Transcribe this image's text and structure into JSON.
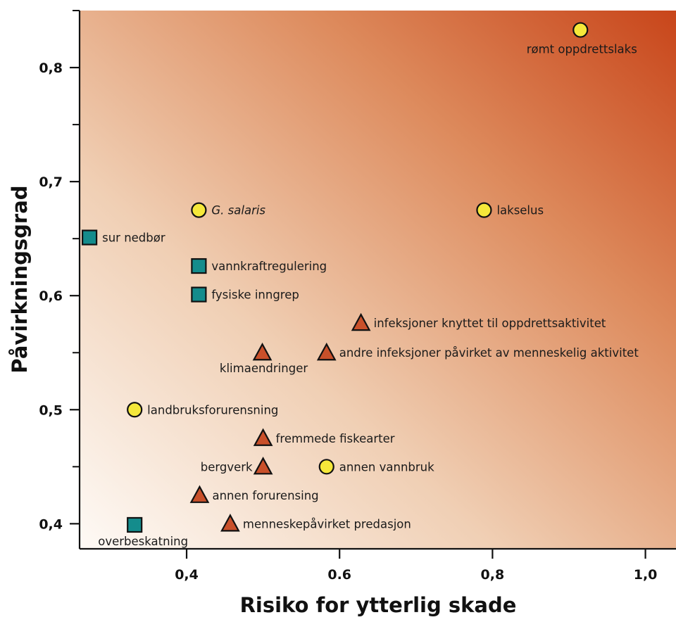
{
  "chart_data": {
    "type": "scatter",
    "title": "",
    "xlabel": "Risiko for ytterlig skade",
    "ylabel": "Påvirkningsgrad",
    "xlim": [
      0.26,
      1.04
    ],
    "ylim": [
      0.378,
      0.85
    ],
    "x_ticks": [
      {
        "value": 0.4,
        "label": "0,4"
      },
      {
        "value": 0.6,
        "label": "0.6"
      },
      {
        "value": 0.8,
        "label": "0,8"
      },
      {
        "value": 1.0,
        "label": "1,0"
      }
    ],
    "y_ticks": [
      {
        "value": 0.4,
        "label": "0,4"
      },
      {
        "value": 0.5,
        "label": "0,5"
      },
      {
        "value": 0.6,
        "label": "0,6"
      },
      {
        "value": 0.7,
        "label": "0,7"
      },
      {
        "value": 0.8,
        "label": "0,8"
      }
    ],
    "y_minor_ticks": [
      0.45,
      0.55,
      0.65,
      0.75,
      0.85
    ],
    "grid": false,
    "legend": "none",
    "background": {
      "type": "gradient",
      "from": "#fdf8f3",
      "to": "#c8451a",
      "direction": "bottom-left to top-right"
    },
    "marker_colors": {
      "circle": "#f5e83a",
      "square": "#148c8c",
      "triangle": "#c9502a",
      "outline": "#111111"
    },
    "points": [
      {
        "label": "rømt oppdrettslaks",
        "x": 0.915,
        "y": 0.833,
        "marker": "circle",
        "label_pos": "below"
      },
      {
        "label": "G. salaris",
        "x": 0.416,
        "y": 0.675,
        "marker": "circle",
        "label_pos": "right",
        "italic": true
      },
      {
        "label": "lakselus",
        "x": 0.789,
        "y": 0.675,
        "marker": "circle",
        "label_pos": "right"
      },
      {
        "label": "sur nedbør",
        "x": 0.273,
        "y": 0.651,
        "marker": "square",
        "label_pos": "right"
      },
      {
        "label": "vannkraftregulering",
        "x": 0.416,
        "y": 0.626,
        "marker": "square",
        "label_pos": "right"
      },
      {
        "label": "fysiske inngrep",
        "x": 0.416,
        "y": 0.601,
        "marker": "square",
        "label_pos": "right"
      },
      {
        "label": "infeksjoner knyttet til oppdrettsaktivitet",
        "x": 0.628,
        "y": 0.576,
        "marker": "triangle",
        "label_pos": "right"
      },
      {
        "label": "klimaendringer",
        "x": 0.499,
        "y": 0.55,
        "marker": "triangle",
        "label_pos": "below"
      },
      {
        "label": "andre infeksjoner påvirket av menneskelig aktivitet",
        "x": 0.583,
        "y": 0.55,
        "marker": "triangle",
        "label_pos": "right"
      },
      {
        "label": "landbruksforurensning",
        "x": 0.332,
        "y": 0.5,
        "marker": "circle",
        "label_pos": "right"
      },
      {
        "label": "fremmede fiskearter",
        "x": 0.5,
        "y": 0.475,
        "marker": "triangle",
        "label_pos": "right"
      },
      {
        "label": "bergverk",
        "x": 0.5,
        "y": 0.45,
        "marker": "triangle",
        "label_pos": "left"
      },
      {
        "label": "annen vannbruk",
        "x": 0.583,
        "y": 0.45,
        "marker": "circle",
        "label_pos": "right"
      },
      {
        "label": "annen forurensing",
        "x": 0.417,
        "y": 0.425,
        "marker": "triangle",
        "label_pos": "right"
      },
      {
        "label": "menneskepåvirket predasjon",
        "x": 0.457,
        "y": 0.4,
        "marker": "triangle",
        "label_pos": "right"
      },
      {
        "label": "overbeskatning",
        "x": 0.332,
        "y": 0.399,
        "marker": "square",
        "label_pos": "below"
      }
    ]
  }
}
